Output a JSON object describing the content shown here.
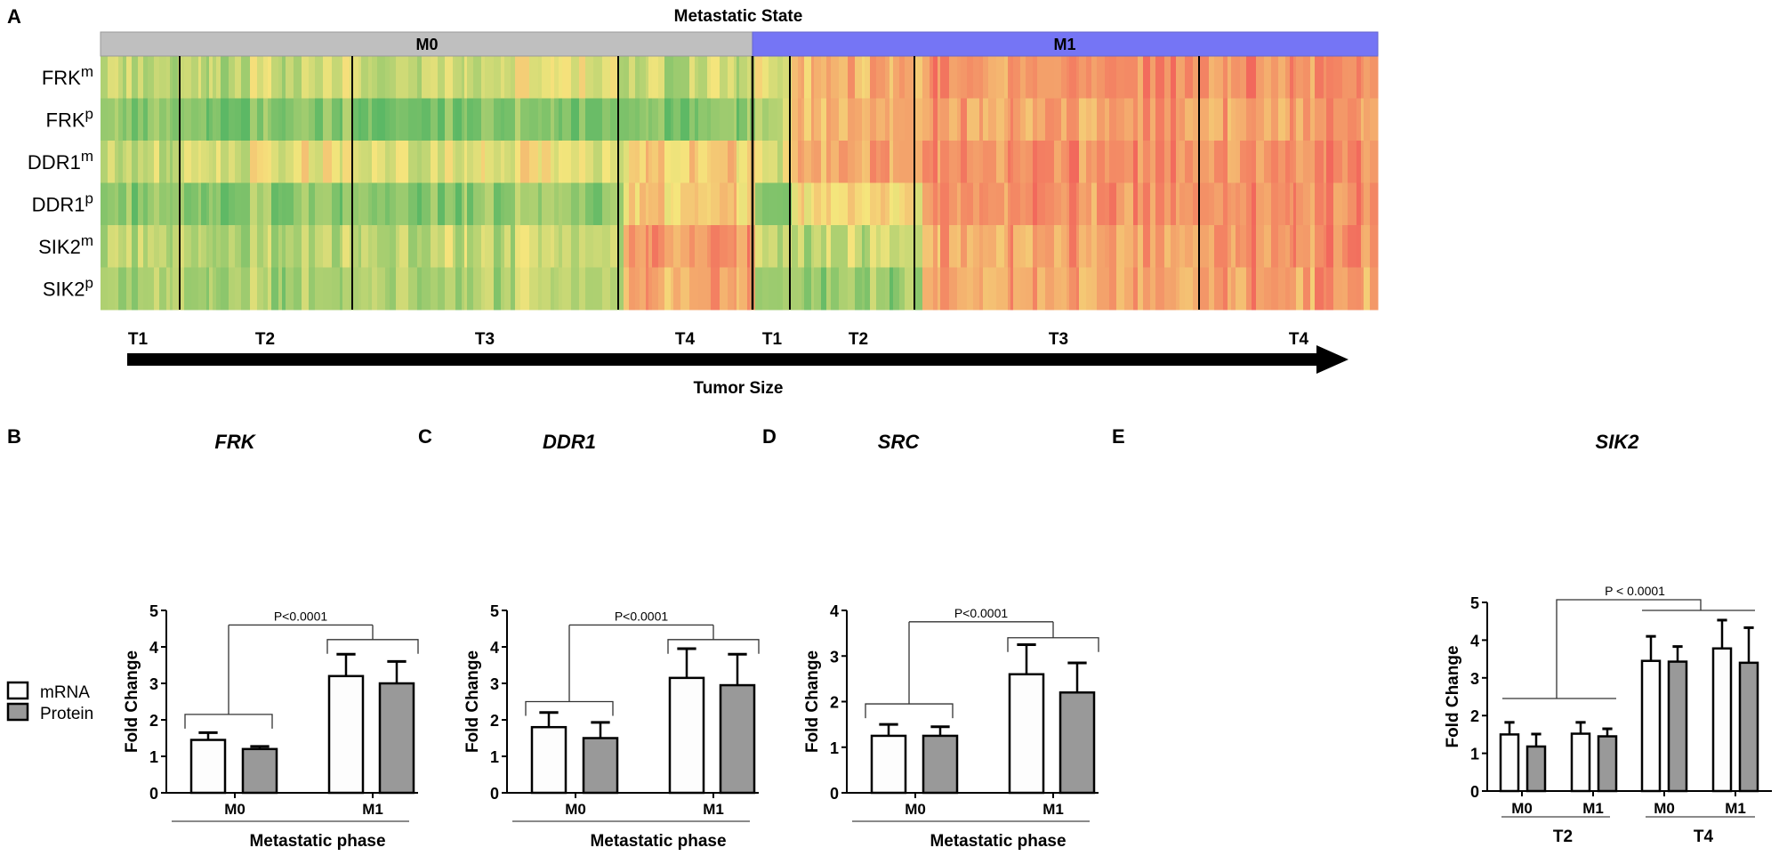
{
  "panel_a": {
    "letter": "A",
    "title": "Metastatic State",
    "groups": [
      "M0",
      "M1"
    ],
    "group_colors": {
      "M0": "#bfbfbf",
      "M1": "#7575f5"
    },
    "rows": [
      {
        "name": "FRK",
        "sup": "m"
      },
      {
        "name": "FRK",
        "sup": "p"
      },
      {
        "name": "DDR1",
        "sup": "m"
      },
      {
        "name": "DDR1",
        "sup": "p"
      },
      {
        "name": "SIK2",
        "sup": "m"
      },
      {
        "name": "SIK2",
        "sup": "p"
      }
    ],
    "stage_labels": [
      "T1",
      "T2",
      "T3",
      "T4",
      "T1",
      "T2",
      "T3",
      "T4"
    ],
    "arrow_label": "Tumor Size",
    "color_scale": {
      "low": "#5cb865",
      "mid": "#f5e57c",
      "high": "#f2685c"
    }
  },
  "chart_data": [
    {
      "type": "heatmap",
      "panel": "A",
      "title": "Metastatic State",
      "xlabel": "Tumor Size",
      "rows": [
        "FRKm",
        "FRKp",
        "DDR1m",
        "DDR1p",
        "SIK2m",
        "SIK2p"
      ],
      "column_groups": [
        "M0 T1",
        "M0 T2",
        "M0 T3",
        "M0 T4",
        "M1 T1",
        "M1 T2",
        "M1 T3",
        "M1 T4"
      ],
      "approximate_levels_low_to_high_0_1": [
        [
          0.3,
          0.35,
          0.4,
          0.35,
          0.45,
          0.7,
          0.85,
          0.85
        ],
        [
          0.15,
          0.12,
          0.12,
          0.15,
          0.35,
          0.7,
          0.8,
          0.8
        ],
        [
          0.3,
          0.45,
          0.45,
          0.6,
          0.45,
          0.75,
          0.85,
          0.85
        ],
        [
          0.15,
          0.15,
          0.2,
          0.6,
          0.15,
          0.55,
          0.85,
          0.85
        ],
        [
          0.3,
          0.3,
          0.35,
          0.8,
          0.35,
          0.35,
          0.75,
          0.85
        ],
        [
          0.25,
          0.25,
          0.3,
          0.75,
          0.2,
          0.2,
          0.75,
          0.8
        ]
      ]
    },
    {
      "type": "bar",
      "panel": "B",
      "letter": "B",
      "title": "FRK",
      "ylabel": "Fold Change",
      "xlabel": "Metastatic phase",
      "ylim": [
        0,
        5
      ],
      "yticks": [
        0,
        1,
        2,
        3,
        4,
        5
      ],
      "categories": [
        "M0",
        "M1"
      ],
      "series": [
        {
          "name": "mRNA",
          "values": [
            1.45,
            3.2
          ],
          "errors": [
            0.2,
            0.6
          ]
        },
        {
          "name": "Protein",
          "values": [
            1.2,
            3.0
          ],
          "errors": [
            0.07,
            0.6
          ]
        }
      ],
      "annotation": "P<0.0001"
    },
    {
      "type": "bar",
      "panel": "C",
      "letter": "C",
      "title": "DDR1",
      "ylabel": "Fold Change",
      "xlabel": "Metastatic phase",
      "ylim": [
        0,
        5
      ],
      "yticks": [
        0,
        1,
        2,
        3,
        4,
        5
      ],
      "categories": [
        "M0",
        "M1"
      ],
      "series": [
        {
          "name": "mRNA",
          "values": [
            1.8,
            3.15
          ],
          "errors": [
            0.4,
            0.8
          ]
        },
        {
          "name": "Protein",
          "values": [
            1.5,
            2.95
          ],
          "errors": [
            0.43,
            0.85
          ]
        }
      ],
      "annotation": "P<0.0001"
    },
    {
      "type": "bar",
      "panel": "D",
      "letter": "D",
      "title": "SRC",
      "ylabel": "Fold Change",
      "xlabel": "Metastatic phase",
      "ylim": [
        0,
        4
      ],
      "yticks": [
        0,
        1,
        2,
        3,
        4
      ],
      "categories": [
        "M0",
        "M1"
      ],
      "series": [
        {
          "name": "mRNA",
          "values": [
            1.25,
            2.6
          ],
          "errors": [
            0.25,
            0.65
          ]
        },
        {
          "name": "Protein",
          "values": [
            1.25,
            2.2
          ],
          "errors": [
            0.2,
            0.65
          ]
        }
      ],
      "annotation": "P<0.0001"
    },
    {
      "type": "bar",
      "panel": "E",
      "letter": "E",
      "title": "SIK2",
      "ylabel": "Fold Change",
      "ylim": [
        0,
        5
      ],
      "yticks": [
        0,
        1,
        2,
        3,
        4,
        5
      ],
      "categories": [
        "M0",
        "M1",
        "M0",
        "M1"
      ],
      "category_groups": [
        "T2",
        "T4"
      ],
      "series": [
        {
          "name": "mRNA",
          "values": [
            1.5,
            1.52,
            3.45,
            3.78
          ],
          "errors": [
            0.32,
            0.3,
            0.65,
            0.75
          ]
        },
        {
          "name": "Protein",
          "values": [
            1.18,
            1.45,
            3.43,
            3.4
          ],
          "errors": [
            0.33,
            0.2,
            0.4,
            0.93
          ]
        }
      ],
      "annotation": "P < 0.0001"
    }
  ],
  "legend": {
    "items": [
      {
        "label": "mRNA",
        "color": "#fdfdfd"
      },
      {
        "label": "Protein",
        "color": "#999999"
      }
    ]
  }
}
